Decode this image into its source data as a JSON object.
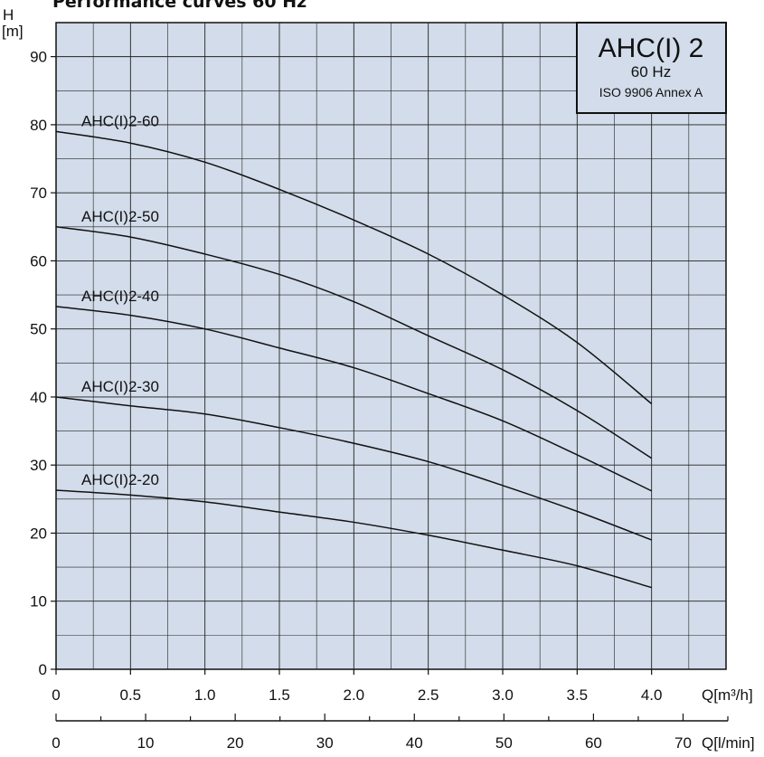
{
  "chart_data": {
    "type": "line",
    "title": "Performance curves 60 Hz",
    "ylabel": "H",
    "yunit": "[m]",
    "xunit": "Q[m³/h]",
    "x2unit": "Q[l/min]",
    "xlim": [
      0,
      4.5
    ],
    "ylim": [
      0,
      95
    ],
    "x2lim": [
      0,
      75
    ],
    "xticks": [
      "0",
      "0.5",
      "1.0",
      "1.5",
      "2.0",
      "2.5",
      "3.0",
      "3.5",
      "4.0"
    ],
    "xtick_values": [
      0,
      0.5,
      1.0,
      1.5,
      2.0,
      2.5,
      3.0,
      3.5,
      4.0
    ],
    "yticks": [
      "0",
      "10",
      "20",
      "30",
      "40",
      "50",
      "60",
      "70",
      "80",
      "90"
    ],
    "ytick_values": [
      0,
      10,
      20,
      30,
      40,
      50,
      60,
      70,
      80,
      90
    ],
    "x2ticks": [
      "0",
      "10",
      "20",
      "30",
      "40",
      "50",
      "60",
      "70"
    ],
    "x2tick_values": [
      0,
      10,
      20,
      30,
      40,
      50,
      60,
      70
    ],
    "grid": true,
    "legend_box": {
      "model": "AHC(I) 2",
      "frequency": "60 Hz",
      "standard": "ISO 9906 Annex A"
    },
    "series": [
      {
        "name": "AHC(I)2-60",
        "x": [
          0,
          0.5,
          1.0,
          1.5,
          2.0,
          2.5,
          3.0,
          3.5,
          4.0
        ],
        "y": [
          79,
          77.3,
          74.5,
          70.5,
          66,
          61,
          55,
          48,
          39
        ]
      },
      {
        "name": "AHC(I)2-50",
        "x": [
          0,
          0.5,
          1.0,
          1.5,
          2.0,
          2.5,
          3.0,
          3.5,
          4.0
        ],
        "y": [
          65,
          63.5,
          61,
          58,
          54,
          49,
          44,
          38,
          31
        ]
      },
      {
        "name": "AHC(I)2-40",
        "x": [
          0,
          0.5,
          1.0,
          1.5,
          2.0,
          2.5,
          3.0,
          3.5,
          4.0
        ],
        "y": [
          53.3,
          52,
          50,
          47.2,
          44.3,
          40.5,
          36.5,
          31.5,
          26.2
        ]
      },
      {
        "name": "AHC(I)2-30",
        "x": [
          0,
          0.5,
          1.0,
          1.5,
          2.0,
          2.5,
          3.0,
          3.5,
          4.0
        ],
        "y": [
          40,
          38.7,
          37.5,
          35.5,
          33.2,
          30.5,
          27,
          23.2,
          19
        ]
      },
      {
        "name": "AHC(I)2-20",
        "x": [
          0,
          0.5,
          1.0,
          1.5,
          2.0,
          2.5,
          3.0,
          3.5,
          4.0
        ],
        "y": [
          26.3,
          25.6,
          24.6,
          23.1,
          21.6,
          19.7,
          17.5,
          15.2,
          12
        ]
      }
    ]
  }
}
